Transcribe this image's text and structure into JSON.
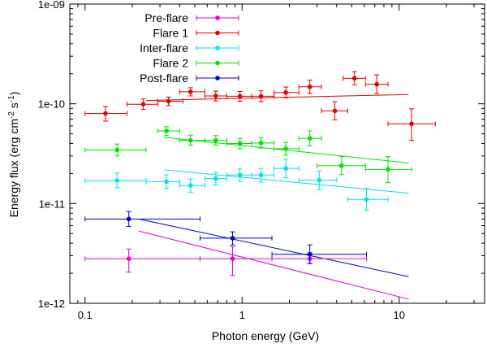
{
  "chart_data": {
    "type": "scatter",
    "title": "",
    "xlabel": "Photon energy  (GeV)",
    "ylabel_parts": [
      "Energy flux  (erg cm",
      "-2",
      " s",
      "-1",
      ")"
    ],
    "xscale": "log",
    "yscale": "log",
    "xlim": [
      0.08,
      35
    ],
    "ylim": [
      1e-12,
      1e-09
    ],
    "x_ticks": [
      {
        "value": 0.1,
        "label": "0.1"
      },
      {
        "value": 1,
        "label": "1"
      },
      {
        "value": 10,
        "label": "10"
      }
    ],
    "y_ticks": [
      {
        "value": 1e-12,
        "label": "1e-12"
      },
      {
        "value": 1e-11,
        "label": "1e-11"
      },
      {
        "value": 1e-10,
        "label": "1e-10"
      },
      {
        "value": 1e-09,
        "label": "1e-09"
      }
    ],
    "legend_position": "top-left",
    "series": [
      {
        "name": "Pre-flare",
        "color": "#e000e0",
        "points": [
          {
            "x": 0.19,
            "y": 2.8e-12,
            "xlo": 0.1,
            "xhi": 0.54,
            "ylo": 2.05e-12,
            "yhi": 3.5e-12
          },
          {
            "x": 0.87,
            "y": 2.8e-12,
            "xlo": 0.54,
            "xhi": 1.55,
            "ylo": 1.9e-12,
            "yhi": 3.7e-12
          },
          {
            "x": 2.7,
            "y": 2.8e-12,
            "xlo": 1.55,
            "xhi": 6.2,
            "ylo": 2.5e-12,
            "yhi": 3.2e-12
          }
        ],
        "fit": {
          "x1": 0.22,
          "y1": 5.3e-12,
          "x2": 11.5,
          "y2": 1.1e-12
        }
      },
      {
        "name": "Flare 1",
        "color": "#e00000",
        "points": [
          {
            "x": 0.135,
            "y": 8e-11,
            "xlo": 0.1,
            "xhi": 0.185,
            "ylo": 6.7e-11,
            "yhi": 9.4e-11
          },
          {
            "x": 0.235,
            "y": 9.9e-11,
            "xlo": 0.185,
            "xhi": 0.29,
            "ylo": 8.8e-11,
            "yhi": 1.12e-10
          },
          {
            "x": 0.34,
            "y": 1.06e-10,
            "xlo": 0.29,
            "xhi": 0.42,
            "ylo": 9.6e-11,
            "yhi": 1.17e-10
          },
          {
            "x": 0.47,
            "y": 1.32e-10,
            "xlo": 0.4,
            "xhi": 0.58,
            "ylo": 1.2e-10,
            "yhi": 1.45e-10
          },
          {
            "x": 0.68,
            "y": 1.2e-10,
            "xlo": 0.58,
            "xhi": 0.8,
            "ylo": 1.07e-10,
            "yhi": 1.34e-10
          },
          {
            "x": 0.97,
            "y": 1.19e-10,
            "xlo": 0.8,
            "xhi": 1.15,
            "ylo": 1.06e-10,
            "yhi": 1.33e-10
          },
          {
            "x": 1.32,
            "y": 1.19e-10,
            "xlo": 1.15,
            "xhi": 1.6,
            "ylo": 1.05e-10,
            "yhi": 1.35e-10
          },
          {
            "x": 1.9,
            "y": 1.3e-10,
            "xlo": 1.6,
            "xhi": 2.3,
            "ylo": 1.15e-10,
            "yhi": 1.47e-10
          },
          {
            "x": 2.7,
            "y": 1.48e-10,
            "xlo": 2.3,
            "xhi": 3.2,
            "ylo": 1.27e-10,
            "yhi": 1.73e-10
          },
          {
            "x": 3.9,
            "y": 8.5e-11,
            "xlo": 3.2,
            "xhi": 4.7,
            "ylo": 6.9e-11,
            "yhi": 1.05e-10
          },
          {
            "x": 5.2,
            "y": 1.8e-10,
            "xlo": 4.4,
            "xhi": 6.1,
            "ylo": 1.55e-10,
            "yhi": 2.1e-10
          },
          {
            "x": 7.2,
            "y": 1.57e-10,
            "xlo": 6.1,
            "xhi": 8.5,
            "ylo": 1.27e-10,
            "yhi": 1.95e-10
          },
          {
            "x": 12,
            "y": 6.3e-11,
            "xlo": 8.5,
            "xhi": 17,
            "ylo": 4.3e-11,
            "yhi": 8.9e-11
          }
        ],
        "fit": {
          "x1": 0.245,
          "y1": 1.08e-10,
          "x2": 11.5,
          "y2": 1.24e-10
        }
      },
      {
        "name": "Inter-flare",
        "color": "#00e0f0",
        "points": [
          {
            "x": 0.16,
            "y": 1.7e-11,
            "xlo": 0.1,
            "xhi": 0.245,
            "ylo": 1.44e-11,
            "yhi": 2.02e-11
          },
          {
            "x": 0.33,
            "y": 1.66e-11,
            "xlo": 0.245,
            "xhi": 0.4,
            "ylo": 1.42e-11,
            "yhi": 1.94e-11
          },
          {
            "x": 0.47,
            "y": 1.52e-11,
            "xlo": 0.4,
            "xhi": 0.58,
            "ylo": 1.3e-11,
            "yhi": 1.76e-11
          },
          {
            "x": 0.68,
            "y": 1.78e-11,
            "xlo": 0.58,
            "xhi": 0.8,
            "ylo": 1.54e-11,
            "yhi": 2.05e-11
          },
          {
            "x": 0.97,
            "y": 1.93e-11,
            "xlo": 0.8,
            "xhi": 1.15,
            "ylo": 1.67e-11,
            "yhi": 2.22e-11
          },
          {
            "x": 1.32,
            "y": 1.93e-11,
            "xlo": 1.15,
            "xhi": 1.6,
            "ylo": 1.64e-11,
            "yhi": 2.25e-11
          },
          {
            "x": 1.9,
            "y": 2.25e-11,
            "xlo": 1.6,
            "xhi": 2.3,
            "ylo": 1.82e-11,
            "yhi": 2.77e-11
          },
          {
            "x": 3.1,
            "y": 1.72e-11,
            "xlo": 2.3,
            "xhi": 4.0,
            "ylo": 1.38e-11,
            "yhi": 2.12e-11
          },
          {
            "x": 6.2,
            "y": 1.1e-11,
            "xlo": 4.7,
            "xhi": 8.5,
            "ylo": 8.6e-12,
            "yhi": 1.42e-11
          }
        ],
        "fit": {
          "x1": 0.32,
          "y1": 2.18e-11,
          "x2": 11.5,
          "y2": 1.27e-11
        }
      },
      {
        "name": "Flare 2",
        "color": "#00e000",
        "points": [
          {
            "x": 0.16,
            "y": 3.45e-11,
            "xlo": 0.1,
            "xhi": 0.245,
            "ylo": 3e-11,
            "yhi": 3.95e-11
          },
          {
            "x": 0.33,
            "y": 5.35e-11,
            "xlo": 0.29,
            "xhi": 0.4,
            "ylo": 4.8e-11,
            "yhi": 5.9e-11
          },
          {
            "x": 0.47,
            "y": 4.3e-11,
            "xlo": 0.4,
            "xhi": 0.58,
            "ylo": 3.85e-11,
            "yhi": 4.85e-11
          },
          {
            "x": 0.68,
            "y": 4.3e-11,
            "xlo": 0.58,
            "xhi": 0.8,
            "ylo": 3.85e-11,
            "yhi": 4.8e-11
          },
          {
            "x": 0.97,
            "y": 4e-11,
            "xlo": 0.8,
            "xhi": 1.15,
            "ylo": 3.55e-11,
            "yhi": 4.5e-11
          },
          {
            "x": 1.32,
            "y": 4.05e-11,
            "xlo": 1.15,
            "xhi": 1.6,
            "ylo": 3.6e-11,
            "yhi": 4.6e-11
          },
          {
            "x": 1.9,
            "y": 3.55e-11,
            "xlo": 1.6,
            "xhi": 2.3,
            "ylo": 3.05e-11,
            "yhi": 4.1e-11
          },
          {
            "x": 2.7,
            "y": 4.5e-11,
            "xlo": 2.3,
            "xhi": 3.2,
            "ylo": 3.8e-11,
            "yhi": 5.35e-11
          },
          {
            "x": 4.3,
            "y": 2.4e-11,
            "xlo": 3.0,
            "xhi": 6.1,
            "ylo": 1.95e-11,
            "yhi": 2.95e-11
          },
          {
            "x": 8.5,
            "y": 2.2e-11,
            "xlo": 6.1,
            "xhi": 12,
            "ylo": 1.62e-11,
            "yhi": 2.95e-11
          }
        ],
        "fit": {
          "x1": 0.32,
          "y1": 4.6e-11,
          "x2": 11.5,
          "y2": 2.55e-11
        }
      },
      {
        "name": "Post-flare",
        "color": "#0000c8",
        "points": [
          {
            "x": 0.19,
            "y": 7e-12,
            "xlo": 0.1,
            "xhi": 0.54,
            "ylo": 5.9e-12,
            "yhi": 8.3e-12
          },
          {
            "x": 0.87,
            "y": 4.5e-12,
            "xlo": 0.54,
            "xhi": 1.55,
            "ylo": 3.85e-12,
            "yhi": 5.2e-12
          },
          {
            "x": 2.7,
            "y": 3.1e-12,
            "xlo": 1.55,
            "xhi": 6.2,
            "ylo": 2.5e-12,
            "yhi": 3.85e-12
          }
        ],
        "fit": {
          "x1": 0.22,
          "y1": 7e-12,
          "x2": 11.5,
          "y2": 1.85e-12
        }
      }
    ]
  }
}
